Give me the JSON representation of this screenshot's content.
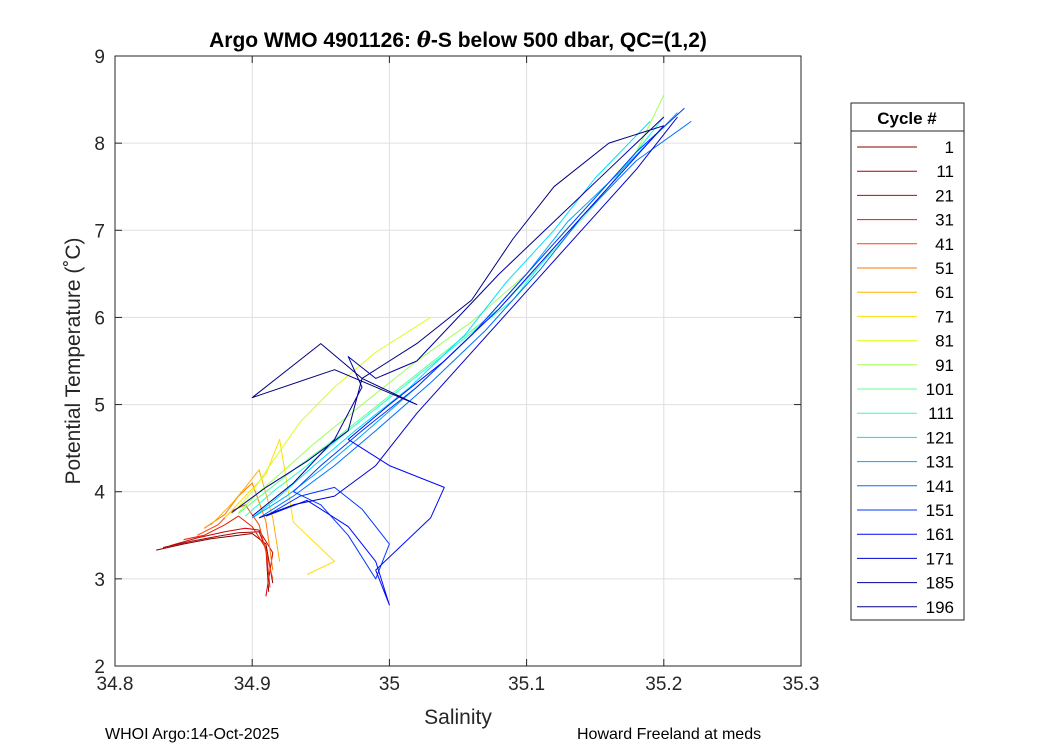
{
  "chart_data": {
    "type": "line",
    "title_prefix": "Argo WMO 4901126: ",
    "title_theta": "θ",
    "title_suffix": "-S below 500 dbar,  QC=(1,2)",
    "xlabel": "Salinity",
    "ylabel": "Potential Temperature (˚C)",
    "xlim": [
      34.8,
      35.3
    ],
    "ylim": [
      2,
      9
    ],
    "xticks": [
      34.8,
      34.9,
      35.0,
      35.1,
      35.2,
      35.3
    ],
    "xtick_labels": [
      "34.8",
      "34.9",
      "35",
      "35.1",
      "35.2",
      "35.3"
    ],
    "yticks": [
      2,
      3,
      4,
      5,
      6,
      7,
      8,
      9
    ],
    "ytick_labels": [
      "2",
      "3",
      "4",
      "5",
      "6",
      "7",
      "8",
      "9"
    ],
    "grid": true,
    "legend_title": "Cycle #",
    "legend_position": "right-outside",
    "colormap": "jet",
    "legend": [
      {
        "label": "1",
        "color": "#800000"
      },
      {
        "label": "11",
        "color": "#a80000"
      },
      {
        "label": "21",
        "color": "#cc0000"
      },
      {
        "label": "31",
        "color": "#e81a00"
      },
      {
        "label": "41",
        "color": "#ff4000"
      },
      {
        "label": "51",
        "color": "#ff7a00"
      },
      {
        "label": "61",
        "color": "#ffb000"
      },
      {
        "label": "71",
        "color": "#ffe000"
      },
      {
        "label": "81",
        "color": "#d8ff20"
      },
      {
        "label": "91",
        "color": "#a0ff58"
      },
      {
        "label": "101",
        "color": "#60ff98"
      },
      {
        "label": "111",
        "color": "#28ffd0"
      },
      {
        "label": "121",
        "color": "#00e0ff"
      },
      {
        "label": "131",
        "color": "#00a8ff"
      },
      {
        "label": "141",
        "color": "#0070ff"
      },
      {
        "label": "151",
        "color": "#0038ff"
      },
      {
        "label": "161",
        "color": "#0008ff"
      },
      {
        "label": "171",
        "color": "#0000d0"
      },
      {
        "label": "185",
        "color": "#0000a0"
      },
      {
        "label": "196",
        "color": "#000080"
      }
    ],
    "series": [
      {
        "name": "1",
        "color": "#800000",
        "x": [
          34.83,
          34.85,
          34.87,
          34.89,
          34.9,
          34.91,
          34.915
        ],
        "y": [
          3.33,
          3.4,
          3.46,
          3.5,
          3.52,
          3.4,
          2.95
        ]
      },
      {
        "name": "11",
        "color": "#a80000",
        "x": [
          34.835,
          34.855,
          34.875,
          34.89,
          34.905,
          34.91,
          34.912
        ],
        "y": [
          3.36,
          3.43,
          3.49,
          3.53,
          3.54,
          3.35,
          2.85
        ]
      },
      {
        "name": "21",
        "color": "#cc0000",
        "x": [
          34.84,
          34.86,
          34.88,
          34.895,
          34.905,
          34.915,
          34.91
        ],
        "y": [
          3.38,
          3.47,
          3.54,
          3.58,
          3.56,
          3.3,
          2.8
        ]
      },
      {
        "name": "31",
        "color": "#e81a00",
        "x": [
          34.85,
          34.865,
          34.88,
          34.89,
          34.9,
          34.91,
          34.913
        ],
        "y": [
          3.45,
          3.5,
          3.62,
          3.72,
          3.6,
          3.35,
          2.9
        ]
      },
      {
        "name": "41",
        "color": "#ff4000",
        "x": [
          34.86,
          34.875,
          34.885,
          34.895,
          34.905,
          34.915
        ],
        "y": [
          3.5,
          3.62,
          3.78,
          3.85,
          3.62,
          3.0
        ]
      },
      {
        "name": "51",
        "color": "#ff7a00",
        "x": [
          34.865,
          34.88,
          34.89,
          34.9,
          34.91,
          34.915
        ],
        "y": [
          3.58,
          3.74,
          3.95,
          4.1,
          3.66,
          3.1
        ]
      },
      {
        "name": "61",
        "color": "#ffb000",
        "x": [
          34.87,
          34.885,
          34.895,
          34.905,
          34.915,
          34.92
        ],
        "y": [
          3.62,
          3.86,
          4.05,
          4.25,
          3.7,
          3.2
        ]
      },
      {
        "name": "71",
        "color": "#ffe000",
        "x": [
          34.88,
          34.895,
          34.91,
          34.92,
          34.93,
          34.96,
          34.94
        ],
        "y": [
          3.7,
          3.95,
          4.2,
          4.6,
          3.65,
          3.2,
          3.05
        ]
      },
      {
        "name": "81",
        "color": "#d8ff20",
        "x": [
          34.885,
          34.9,
          34.915,
          34.935,
          34.96,
          34.99,
          35.03
        ],
        "y": [
          3.74,
          4.0,
          4.35,
          4.8,
          5.2,
          5.6,
          6.0
        ]
      },
      {
        "name": "91",
        "color": "#a0ff58",
        "x": [
          34.89,
          34.905,
          34.92,
          34.945,
          34.98,
          35.02,
          35.06,
          35.1,
          35.14,
          35.18,
          35.2
        ],
        "y": [
          3.76,
          4.0,
          4.2,
          4.55,
          5.0,
          5.5,
          5.95,
          6.5,
          7.2,
          7.9,
          8.55
        ]
      },
      {
        "name": "101",
        "color": "#60ff98",
        "x": [
          34.89,
          34.91,
          34.93,
          34.96,
          35.0,
          35.04,
          35.08,
          35.11,
          35.15,
          35.19
        ],
        "y": [
          3.75,
          4.0,
          4.25,
          4.6,
          5.1,
          5.6,
          6.1,
          6.6,
          7.3,
          8.1
        ]
      },
      {
        "name": "111",
        "color": "#28ffd0",
        "x": [
          34.895,
          34.915,
          34.94,
          34.97,
          35.01,
          35.05,
          35.09,
          35.12,
          35.16,
          35.2
        ],
        "y": [
          3.72,
          4.0,
          4.3,
          4.7,
          5.2,
          5.7,
          6.2,
          6.8,
          7.5,
          8.3
        ]
      },
      {
        "name": "121",
        "color": "#00e0ff",
        "x": [
          34.9,
          34.92,
          34.945,
          34.975,
          35.015,
          35.055,
          35.085,
          35.12,
          35.15,
          35.19
        ],
        "y": [
          3.7,
          3.95,
          4.3,
          4.7,
          5.2,
          5.8,
          6.4,
          7.0,
          7.6,
          8.25
        ]
      },
      {
        "name": "131",
        "color": "#00a8ff",
        "x": [
          34.9,
          34.925,
          34.95,
          34.98,
          35.02,
          35.06,
          35.1,
          35.13,
          35.17,
          35.21
        ],
        "y": [
          3.7,
          3.95,
          4.25,
          4.65,
          5.2,
          5.8,
          6.5,
          7.1,
          7.7,
          8.35
        ]
      },
      {
        "name": "141",
        "color": "#0070ff",
        "x": [
          34.905,
          34.93,
          34.96,
          34.99,
          35.03,
          35.07,
          35.11,
          35.14,
          35.18,
          35.22
        ],
        "y": [
          3.7,
          3.95,
          4.3,
          4.7,
          5.25,
          5.85,
          6.55,
          7.15,
          7.8,
          8.25
        ]
      },
      {
        "name": "151",
        "color": "#0038ff",
        "x": [
          34.91,
          34.935,
          34.96,
          34.98,
          35.0,
          34.99,
          34.97,
          34.95,
          34.93,
          34.95,
          34.98,
          35.02,
          35.06,
          35.1,
          35.14,
          35.18,
          35.215
        ],
        "y": [
          3.72,
          3.95,
          4.05,
          3.8,
          3.4,
          3.0,
          3.5,
          3.85,
          4.0,
          4.3,
          4.7,
          5.2,
          5.8,
          6.5,
          7.2,
          7.9,
          8.4
        ]
      },
      {
        "name": "161",
        "color": "#0008ff",
        "x": [
          34.91,
          34.94,
          34.97,
          34.99,
          35.0,
          34.99,
          35.03,
          35.04,
          35.0,
          34.97,
          35.0,
          35.04,
          35.08,
          35.12,
          35.16,
          35.2
        ],
        "y": [
          3.72,
          3.9,
          3.6,
          3.2,
          2.7,
          3.1,
          3.7,
          4.05,
          4.3,
          4.6,
          5.0,
          5.5,
          6.1,
          6.8,
          7.5,
          8.2
        ]
      },
      {
        "name": "171",
        "color": "#0000d0",
        "x": [
          34.905,
          34.93,
          34.96,
          34.99,
          35.02,
          35.06,
          35.1,
          35.14,
          35.18,
          35.21
        ],
        "y": [
          3.7,
          3.85,
          3.95,
          4.3,
          4.9,
          5.6,
          6.3,
          7.0,
          7.7,
          8.3
        ]
      },
      {
        "name": "185",
        "color": "#0000a0",
        "x": [
          34.9,
          34.93,
          34.96,
          34.98,
          34.97,
          34.99,
          35.02,
          35.05,
          35.08,
          35.12,
          35.16,
          35.2
        ],
        "y": [
          3.72,
          4.1,
          4.6,
          5.2,
          5.55,
          5.3,
          5.5,
          6.0,
          6.5,
          7.1,
          7.7,
          8.3
        ]
      },
      {
        "name": "196",
        "color": "#000080",
        "x": [
          34.885,
          34.91,
          34.94,
          34.97,
          34.98,
          34.95,
          34.9,
          34.96,
          34.99,
          35.02,
          34.98,
          35.02,
          35.06,
          35.09,
          35.12,
          35.16,
          35.2
        ],
        "y": [
          3.76,
          4.05,
          4.35,
          4.7,
          5.3,
          5.7,
          5.08,
          5.4,
          5.2,
          5.0,
          5.3,
          5.7,
          6.2,
          6.9,
          7.5,
          8.0,
          8.2
        ]
      }
    ]
  },
  "footer": {
    "left": "WHOI Argo:14-Oct-2025",
    "right": "Howard Freeland at meds"
  }
}
